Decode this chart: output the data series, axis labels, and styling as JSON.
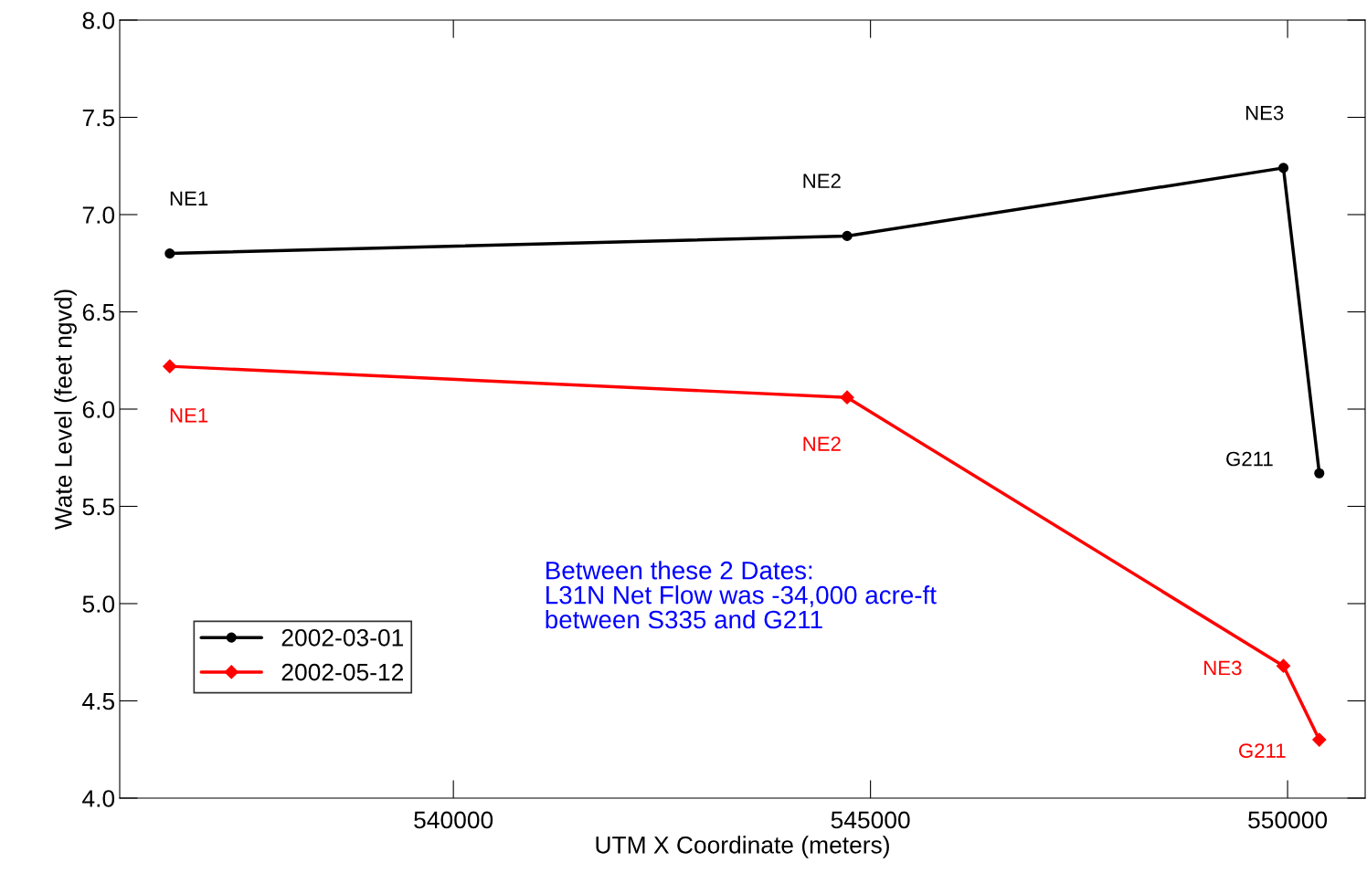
{
  "chart_data": {
    "type": "line",
    "xlabel": "UTM X Coordinate (meters)",
    "ylabel": "Wate Level (feet ngvd)",
    "x": [
      536600,
      544720,
      549950,
      550380
    ],
    "series": [
      {
        "name": "2002-03-01",
        "color": "#000000",
        "marker": "circle",
        "values": [
          6.8,
          6.89,
          7.24,
          5.67
        ]
      },
      {
        "name": "2002-05-12",
        "color": "#ff0000",
        "marker": "diamond",
        "values": [
          6.22,
          6.06,
          4.68,
          4.3
        ]
      }
    ],
    "annotations": [
      {
        "text": "NE1",
        "x": 536600,
        "y": 6.8
      },
      {
        "text": "NE2",
        "x": 544720,
        "y": 6.89
      },
      {
        "text": "NE3",
        "x": 549950,
        "y": 7.24
      },
      {
        "text": "G211",
        "x": 550380,
        "y": 5.67
      },
      {
        "text": "NE1",
        "x": 536600,
        "y": 6.22
      },
      {
        "text": "NE2",
        "x": 544720,
        "y": 6.06
      },
      {
        "text": "NE3",
        "x": 549950,
        "y": 4.68
      },
      {
        "text": "G211",
        "x": 550380,
        "y": 4.3
      },
      "Between these 2 Dates:\nL31N Net Flow was -34,000 acre-ft\nbetween S335 and G211"
    ],
    "xlim": [
      536000,
      550930
    ],
    "xticks": [
      540000,
      545000,
      550000
    ],
    "ylim": [
      4.0,
      8.0
    ],
    "yticks": [
      {
        "value": 4.0,
        "label": "4.0"
      },
      4.5,
      {
        "value": 5.0,
        "label": "5.0"
      },
      5.5,
      {
        "value": 6.0,
        "label": "6.0"
      },
      6.5,
      {
        "value": 7.0,
        "label": "7.0"
      },
      7.5,
      {
        "value": 8.0,
        "label": "8.0"
      }
    ],
    "legend": "bottom left",
    "grid": false,
    "line_style": "solid"
  }
}
